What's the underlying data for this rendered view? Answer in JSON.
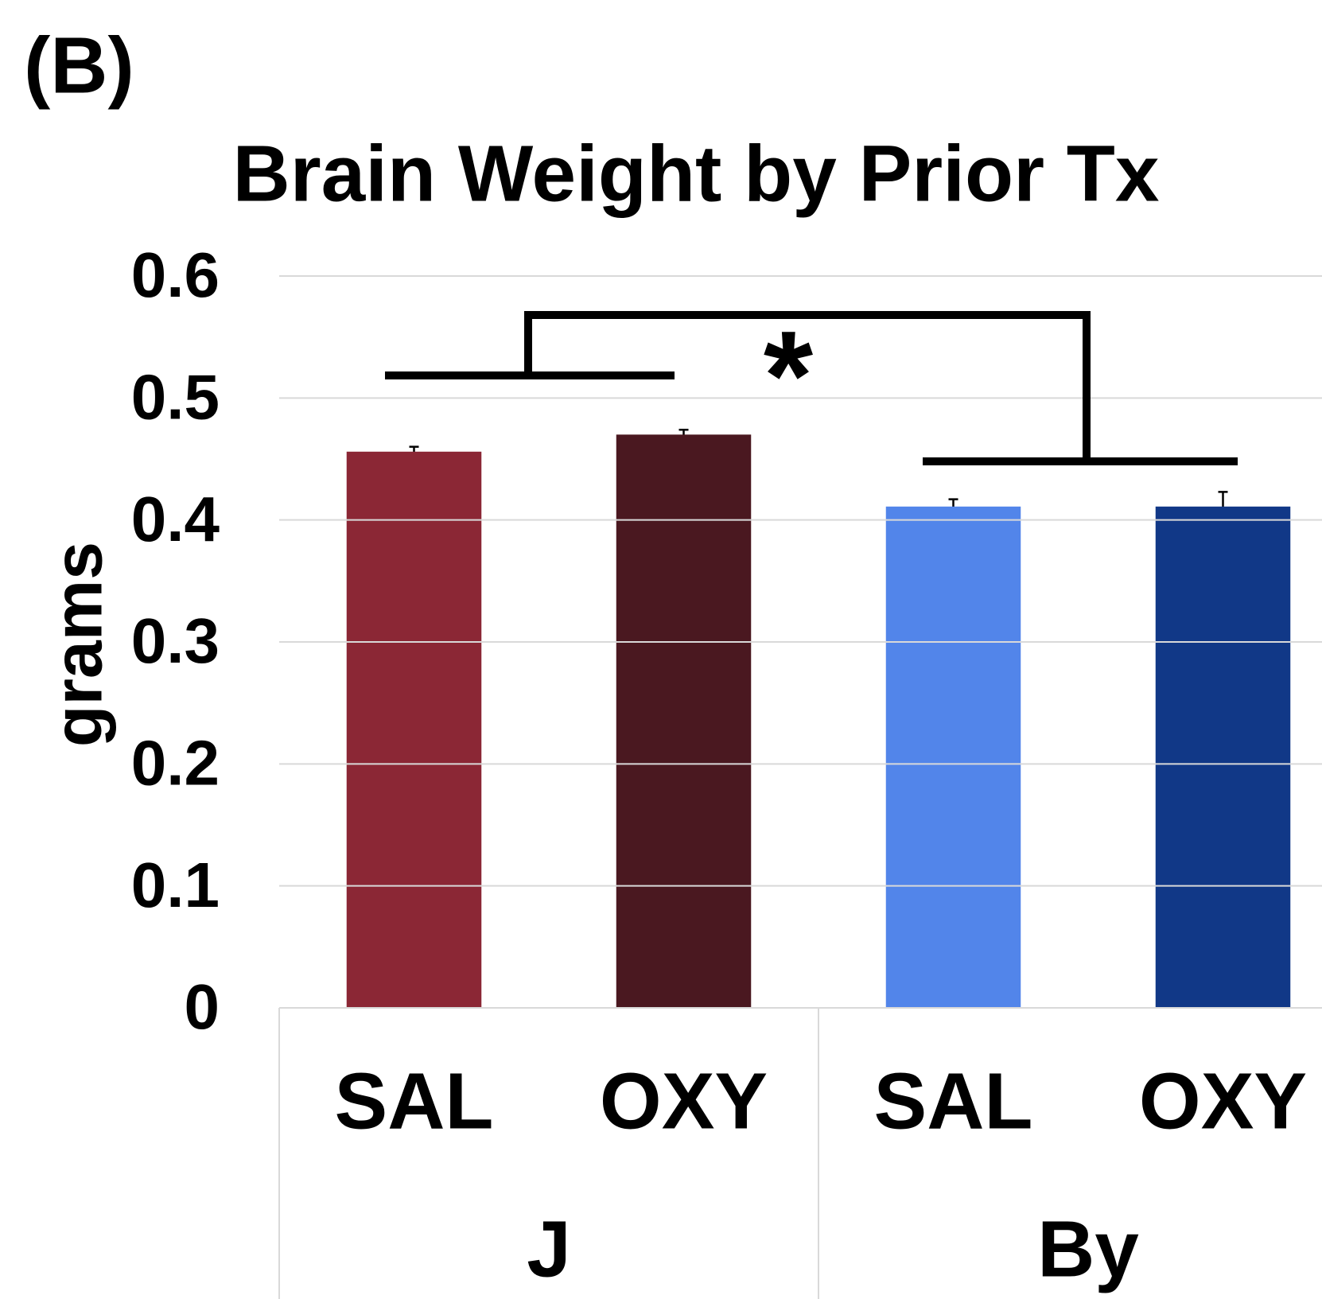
{
  "chart_data": {
    "type": "bar",
    "panel_label": "(B)",
    "title": "Brain Weight by Prior Tx",
    "y_label": "grams",
    "categories": [
      "SAL",
      "OXY",
      "SAL",
      "OXY"
    ],
    "groups": [
      "J",
      "By"
    ],
    "values": [
      0.456,
      0.47,
      0.411,
      0.411
    ],
    "errors": [
      0.004,
      0.004,
      0.006,
      0.012
    ],
    "colors": [
      "#8b2735",
      "#4a1820",
      "#5285ea",
      "#113887"
    ],
    "annotation": "*",
    "ylim": [
      0,
      0.6
    ],
    "yticks": [
      0,
      0.1,
      0.2,
      0.3,
      0.4,
      0.5,
      0.6
    ],
    "grid": true
  }
}
